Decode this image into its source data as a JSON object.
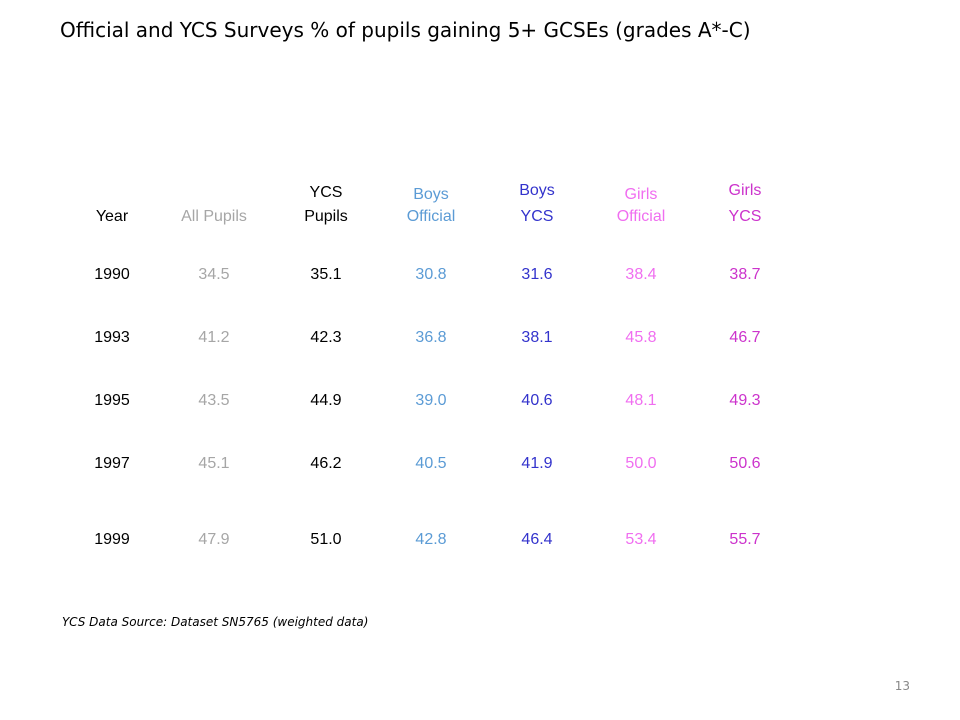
{
  "title": "Official and YCS Surveys % of pupils gaining 5+ GCSEs (grades A*-C)",
  "table": {
    "headers": [
      {
        "line1": "",
        "line2": "Year",
        "color": "#000000"
      },
      {
        "line1": "",
        "line2": "All Pupils",
        "color": "#a6a6a6"
      },
      {
        "line1": "YCS",
        "line2": "Pupils",
        "color": "#000000"
      },
      {
        "line1": "Boys",
        "line2": "Official",
        "color": "#5b9bd5"
      },
      {
        "line1": "Boys",
        "line2": "YCS",
        "color": "#3333cc"
      },
      {
        "line1": "Girls",
        "line2": "Official",
        "color": "#f06ef0"
      },
      {
        "line1": "Girls",
        "line2": "YCS",
        "color": "#cc33cc"
      }
    ],
    "rows": [
      [
        "1990",
        "34.5",
        "35.1",
        "30.8",
        "31.6",
        "38.4",
        "38.7"
      ],
      [
        "1993",
        "41.2",
        "42.3",
        "36.8",
        "38.1",
        "45.8",
        "46.7"
      ],
      [
        "1995",
        "43.5",
        "44.9",
        "39.0",
        "40.6",
        "48.1",
        "49.3"
      ],
      [
        "1997",
        "45.1",
        "46.2",
        "40.5",
        "41.9",
        "50.0",
        "50.6"
      ],
      [
        "1999",
        "47.9",
        "51.0",
        "42.8",
        "46.4",
        "53.4",
        "55.7"
      ]
    ]
  },
  "source": "YCS Data Source: Dataset SN5765 (weighted data)",
  "page_number": "13"
}
